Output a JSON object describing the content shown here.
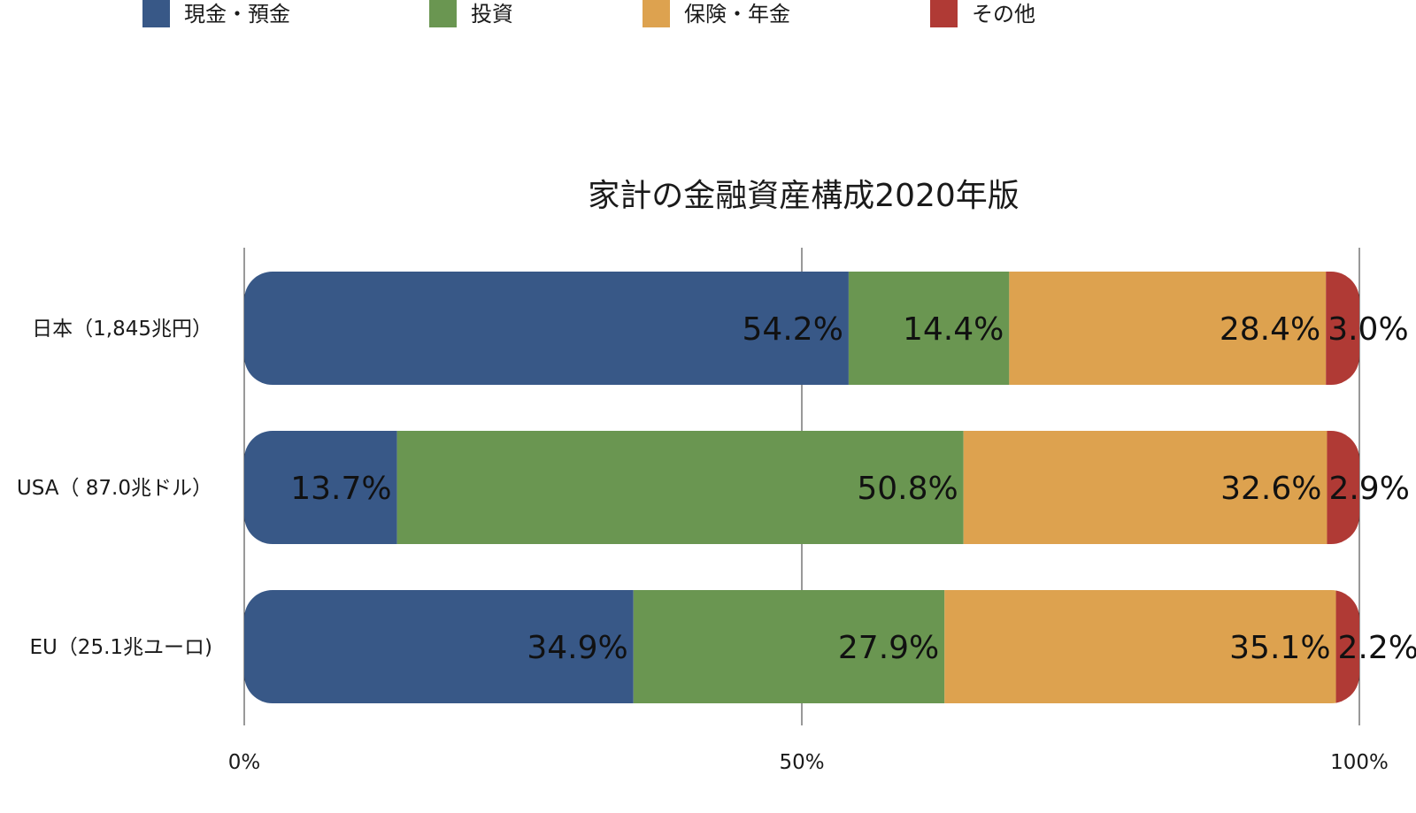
{
  "chart_data": {
    "type": "bar",
    "orientation": "horizontal",
    "stacked": "percent",
    "title": "家計の金融資産構成2020年版",
    "categories": [
      "日本（1,845兆円）",
      "USA（ 87.0兆ドル）",
      "EU（25.1兆ユーロ)"
    ],
    "series": [
      {
        "name": "現金・預金",
        "color": "#385887",
        "values": [
          54.2,
          13.7,
          34.9
        ],
        "labels": [
          "54.2%",
          "13.7%",
          "34.9%"
        ]
      },
      {
        "name": "投資",
        "color": "#6a9651",
        "values": [
          14.4,
          50.8,
          27.9
        ],
        "labels": [
          "14.4%",
          "50.8%",
          "27.9%"
        ]
      },
      {
        "name": "保険・年金",
        "color": "#dda24f",
        "values": [
          28.4,
          32.6,
          35.1
        ],
        "labels": [
          "28.4%",
          "32.6%",
          "35.1%"
        ]
      },
      {
        "name": "その他",
        "color": "#b03a35",
        "values": [
          3.0,
          2.9,
          2.2
        ],
        "labels": [
          "3.0%",
          "2.9%",
          "2.2%"
        ]
      }
    ],
    "xlim": [
      0,
      100
    ],
    "x_ticks": [
      0,
      50,
      100
    ],
    "x_tick_labels": [
      "0%",
      "50%",
      "100%"
    ],
    "grid": "vertical",
    "legend_position": "top"
  }
}
